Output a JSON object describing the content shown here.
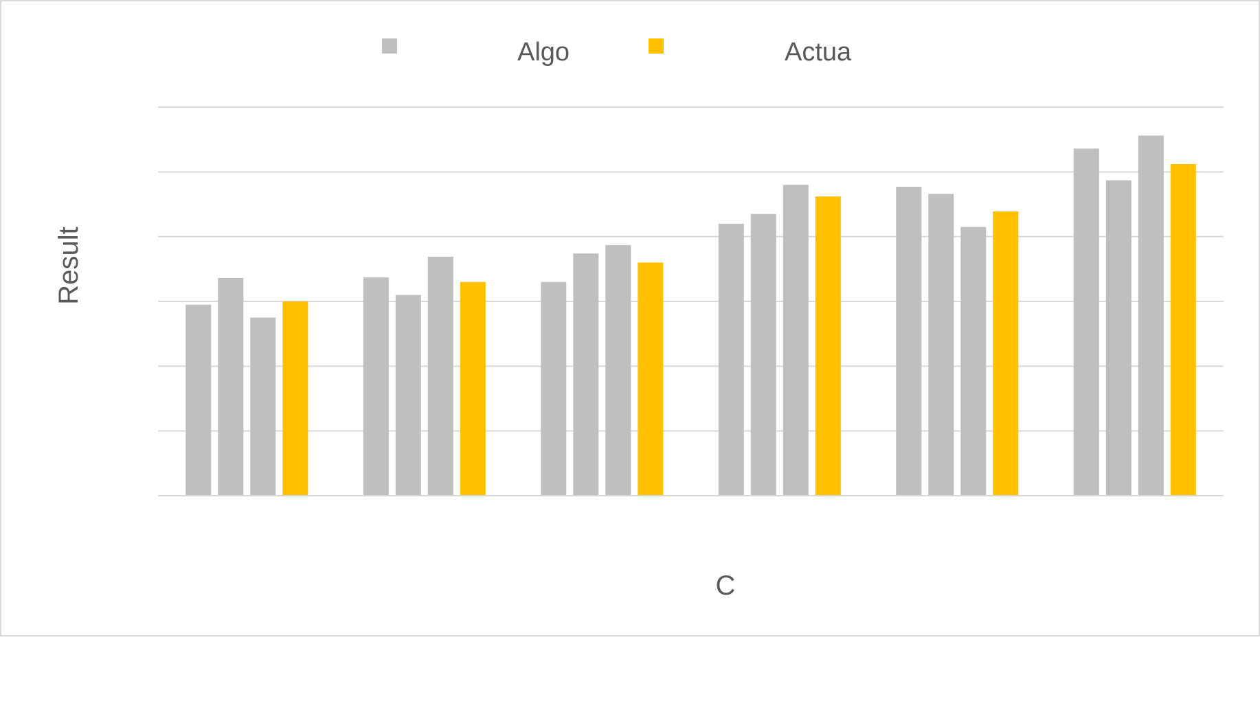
{
  "chart_data": {
    "type": "bar",
    "title": "",
    "xlabel": "C",
    "ylabel": "Result",
    "ylim": [
      0,
      6
    ],
    "grid": true,
    "legend_position": "top",
    "categories": [
      "",
      "",
      "",
      "",
      "",
      ""
    ],
    "series": [
      {
        "name": "Algo",
        "color": "#bfbfbf",
        "values": [
          2.95,
          3.37,
          3.3,
          4.2,
          4.77,
          5.36
        ]
      },
      {
        "name": "",
        "color": "#bfbfbf",
        "values": [
          3.36,
          3.1,
          3.74,
          4.35,
          4.66,
          4.87
        ]
      },
      {
        "name": "",
        "color": "#bfbfbf",
        "values": [
          2.75,
          3.69,
          3.87,
          4.8,
          4.15,
          5.56
        ]
      },
      {
        "name": "Actua",
        "color": "#ffc000",
        "values": [
          3.0,
          3.3,
          3.6,
          4.62,
          4.39,
          5.12
        ]
      }
    ]
  }
}
